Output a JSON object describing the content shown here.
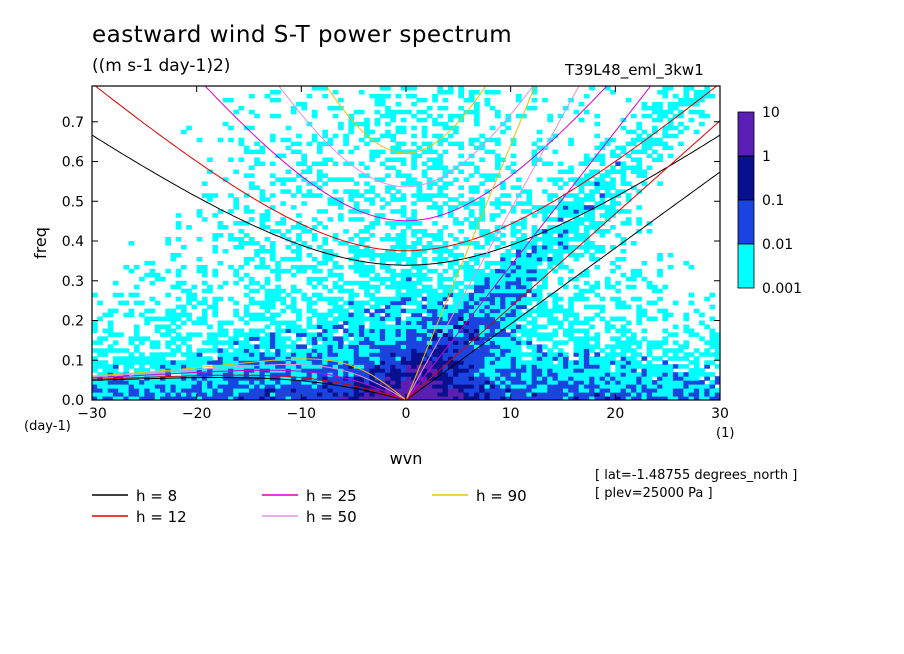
{
  "header": {
    "title": "eastward wind S-T power spectrum",
    "units": "((m s-1 day-1)2)",
    "run_id": "T39L48_eml_3kw1"
  },
  "annotations": {
    "lat": "[ lat=-1.48755 degrees_north ]",
    "plev": "[ plev=25000 Pa ]"
  },
  "colorbar": {
    "labels": [
      "10",
      "1",
      "0.1",
      "0.01",
      "0.001"
    ],
    "colors": [
      "#5a1fb4",
      "#08108f",
      "#1a44e0",
      "#00ffff"
    ]
  },
  "chart_data": {
    "type": "heatmap",
    "title": "eastward wind S-T power spectrum",
    "subtitle": "((m s-1 day-1)2)",
    "xlabel": "wvn",
    "ylabel": "freq",
    "x_unit_label": "(1)",
    "y_unit_label": "(day-1)",
    "xlim": [
      -30,
      30
    ],
    "ylim": [
      0,
      0.79
    ],
    "xticks": [
      -30,
      -20,
      -10,
      0,
      10,
      20,
      30
    ],
    "yticks": [
      0.0,
      0.1,
      0.2,
      0.3,
      0.4,
      0.5,
      0.6,
      0.7
    ],
    "contour_levels": [
      0.001,
      0.01,
      0.1,
      1,
      10
    ],
    "dispersion_curves": [
      {
        "name": "h =  8",
        "h": 8,
        "color": "#000000"
      },
      {
        "name": "h = 12",
        "h": 12,
        "color": "#e00000"
      },
      {
        "name": "h = 25",
        "h": 25,
        "color": "#d000d0"
      },
      {
        "name": "h = 50",
        "h": 50,
        "color": "#e090e0"
      },
      {
        "name": "h = 90",
        "h": 90,
        "color": "#f0c000"
      }
    ]
  }
}
